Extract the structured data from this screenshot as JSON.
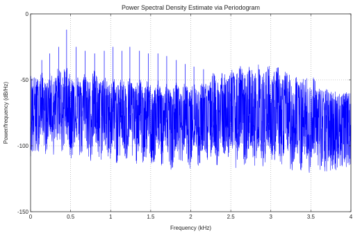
{
  "chart_data": {
    "type": "line",
    "title": "Power Spectral Density Estimate via Periodogram",
    "xlabel": "Frequency (kHz)",
    "ylabel": "Power/frequency (dB/Hz)",
    "xlim": [
      0,
      4
    ],
    "ylim": [
      -150,
      0
    ],
    "xticks": [
      0,
      0.5,
      1,
      1.5,
      2,
      2.5,
      3,
      3.5,
      4
    ],
    "xtick_labels": [
      "0",
      "0.5",
      "1",
      "1.5",
      "2",
      "2.5",
      "3",
      "3.5",
      "4"
    ],
    "yticks": [
      -150,
      -100,
      -50,
      0
    ],
    "ytick_labels": [
      "-150",
      "-100",
      "-50",
      "0"
    ],
    "grid": true,
    "series_color": "#0000ff",
    "series": [
      {
        "harmonics_khz": [
          0.14,
          0.24,
          0.35,
          0.45,
          0.57,
          0.68,
          0.8,
          0.92,
          1.03,
          1.14,
          1.24,
          1.36,
          1.47,
          1.59,
          1.7,
          1.82,
          1.93,
          2.04,
          2.16,
          2.28,
          2.39,
          2.5,
          2.62,
          2.74,
          2.85,
          2.97,
          3.08,
          3.2,
          3.32,
          3.43,
          3.54
        ],
        "upper_envelope_db": [
          [
            0,
            -45
          ],
          [
            0.2,
            -55
          ],
          [
            0.4,
            -45
          ],
          [
            0.6,
            -52
          ],
          [
            0.8,
            -50
          ],
          [
            1.0,
            -55
          ],
          [
            1.2,
            -55
          ],
          [
            1.5,
            -58
          ],
          [
            2.0,
            -60
          ],
          [
            2.5,
            -47
          ],
          [
            3.0,
            -45
          ],
          [
            3.5,
            -55
          ],
          [
            4.0,
            -60
          ]
        ],
        "median_db": [
          [
            0,
            -72
          ],
          [
            0.5,
            -70
          ],
          [
            1.0,
            -74
          ],
          [
            1.5,
            -78
          ],
          [
            2.0,
            -80
          ],
          [
            2.5,
            -82
          ],
          [
            3.0,
            -83
          ],
          [
            3.5,
            -84
          ],
          [
            4.0,
            -85
          ]
        ],
        "lower_envelope_db": [
          [
            0,
            -108
          ],
          [
            0.5,
            -112
          ],
          [
            1.0,
            -118
          ],
          [
            1.5,
            -120
          ],
          [
            2.0,
            -120
          ],
          [
            2.5,
            -118
          ],
          [
            3.0,
            -118
          ],
          [
            3.5,
            -125
          ],
          [
            4.0,
            -115
          ]
        ],
        "peak_tops_db": [
          [
            0.14,
            -35
          ],
          [
            0.24,
            -30
          ],
          [
            0.35,
            -25
          ],
          [
            0.45,
            -12
          ],
          [
            0.57,
            -25
          ],
          [
            0.68,
            -28
          ],
          [
            0.8,
            -30
          ],
          [
            0.92,
            -28
          ],
          [
            1.03,
            -25
          ],
          [
            1.14,
            -28
          ],
          [
            1.24,
            -25
          ],
          [
            1.36,
            -28
          ],
          [
            1.47,
            -30
          ],
          [
            1.59,
            -30
          ],
          [
            1.7,
            -32
          ],
          [
            1.82,
            -35
          ],
          [
            1.93,
            -38
          ],
          [
            2.04,
            -40
          ],
          [
            2.16,
            -42
          ],
          [
            2.28,
            -45
          ],
          [
            2.39,
            -45
          ],
          [
            2.5,
            -45
          ],
          [
            2.62,
            -45
          ],
          [
            2.74,
            -43
          ],
          [
            2.85,
            -42
          ],
          [
            2.97,
            -42
          ],
          [
            3.08,
            -45
          ],
          [
            3.2,
            -45
          ],
          [
            3.32,
            -48
          ],
          [
            3.43,
            -50
          ],
          [
            3.54,
            -50
          ]
        ]
      }
    ]
  }
}
